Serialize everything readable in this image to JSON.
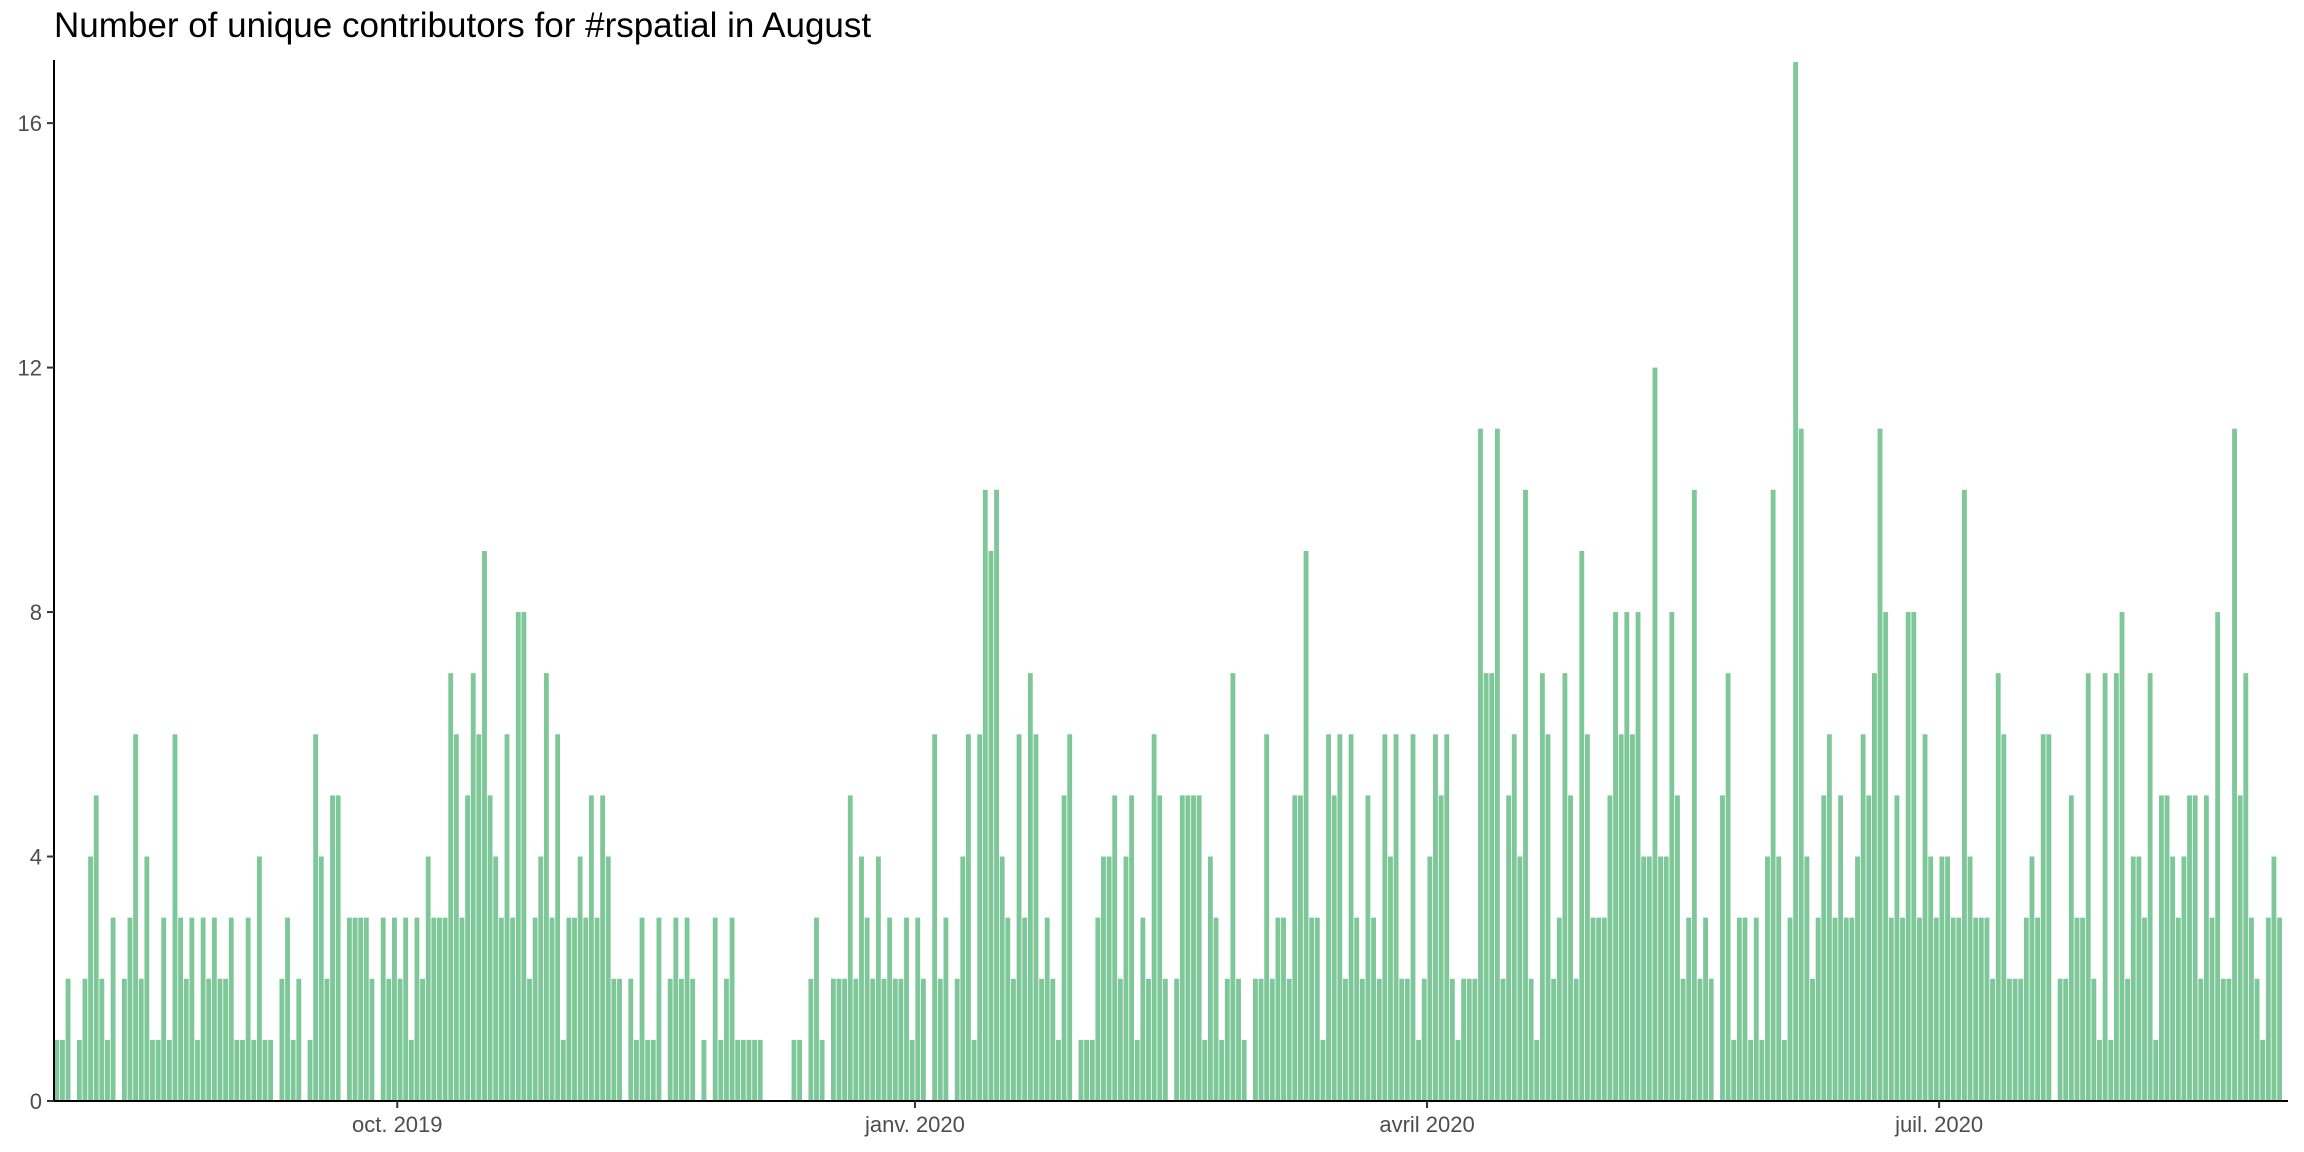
{
  "chart_data": {
    "type": "bar",
    "title": "Number of unique contributors for #rspatial in August",
    "xlabel": "",
    "ylabel": "",
    "x_start": "2019-08-01",
    "x_end": "2020-09-01",
    "ylim": [
      0,
      17
    ],
    "y_ticks": [
      0,
      4,
      8,
      12,
      16
    ],
    "x_ticks": [
      {
        "date": "2019-10-01",
        "label": "oct. 2019"
      },
      {
        "date": "2020-01-01",
        "label": "janv. 2020"
      },
      {
        "date": "2020-04-01",
        "label": "avril 2020"
      },
      {
        "date": "2020-07-01",
        "label": "juil. 2020"
      }
    ],
    "grid": false,
    "bar_color": "#7dc798",
    "values": [
      1,
      1,
      2,
      0,
      1,
      2,
      4,
      5,
      2,
      1,
      3,
      0,
      2,
      3,
      6,
      2,
      4,
      1,
      1,
      3,
      1,
      6,
      3,
      2,
      3,
      1,
      3,
      2,
      3,
      2,
      2,
      3,
      1,
      1,
      3,
      1,
      4,
      1,
      1,
      0,
      2,
      3,
      1,
      2,
      0,
      1,
      6,
      4,
      2,
      5,
      5,
      0,
      3,
      3,
      3,
      3,
      2,
      0,
      3,
      2,
      3,
      2,
      3,
      1,
      3,
      2,
      4,
      3,
      3,
      3,
      7,
      6,
      3,
      5,
      7,
      6,
      9,
      5,
      4,
      3,
      6,
      3,
      8,
      8,
      2,
      3,
      4,
      7,
      3,
      6,
      1,
      3,
      3,
      4,
      3,
      5,
      3,
      5,
      4,
      2,
      2,
      0,
      2,
      1,
      3,
      1,
      1,
      3,
      0,
      2,
      3,
      2,
      3,
      2,
      0,
      1,
      0,
      3,
      1,
      2,
      3,
      1,
      1,
      1,
      1,
      1,
      0,
      0,
      0,
      0,
      0,
      1,
      1,
      0,
      2,
      3,
      1,
      0,
      2,
      2,
      2,
      5,
      2,
      4,
      3,
      2,
      4,
      2,
      3,
      2,
      2,
      3,
      1,
      3,
      2,
      0,
      6,
      2,
      3,
      0,
      2,
      4,
      6,
      1,
      6,
      10,
      9,
      10,
      4,
      3,
      2,
      6,
      3,
      7,
      6,
      2,
      3,
      2,
      1,
      5,
      6,
      0,
      1,
      1,
      1,
      3,
      4,
      4,
      5,
      2,
      4,
      5,
      1,
      3,
      2,
      6,
      5,
      2,
      0,
      2,
      5,
      5,
      5,
      5,
      1,
      4,
      3,
      1,
      2,
      7,
      2,
      1,
      0,
      2,
      2,
      6,
      2,
      3,
      3,
      2,
      5,
      5,
      9,
      3,
      3,
      1,
      6,
      5,
      6,
      2,
      6,
      3,
      2,
      5,
      3,
      2,
      6,
      4,
      6,
      2,
      2,
      6,
      1,
      2,
      4,
      6,
      5,
      6,
      2,
      1,
      2,
      2,
      2,
      11,
      7,
      7,
      11,
      2,
      5,
      6,
      4,
      10,
      2,
      1,
      7,
      6,
      2,
      3,
      7,
      5,
      2,
      9,
      6,
      3,
      3,
      3,
      5,
      8,
      6,
      8,
      6,
      8,
      4,
      4,
      12,
      4,
      4,
      8,
      5,
      2,
      3,
      10,
      2,
      3,
      2,
      0,
      5,
      7,
      1,
      3,
      3,
      1,
      3,
      1,
      4,
      10,
      4,
      1,
      3,
      17,
      11,
      4,
      2,
      3,
      5,
      6,
      3,
      5,
      3,
      3,
      4,
      6,
      5,
      7,
      11,
      8,
      3,
      5,
      3,
      8,
      8,
      3,
      6,
      4,
      3,
      4,
      4,
      3,
      3,
      10,
      4,
      3,
      3,
      3,
      2,
      7,
      6,
      2,
      2,
      2,
      3,
      4,
      3,
      6,
      6,
      0,
      2,
      2,
      5,
      3,
      3,
      7,
      2,
      1,
      7,
      1,
      7,
      8,
      2,
      4,
      4,
      3,
      7,
      1,
      5,
      5,
      4,
      3,
      4,
      5,
      5,
      2,
      5,
      3,
      8,
      2,
      2,
      11,
      5,
      7,
      3,
      2,
      1,
      3,
      4,
      3
    ]
  }
}
